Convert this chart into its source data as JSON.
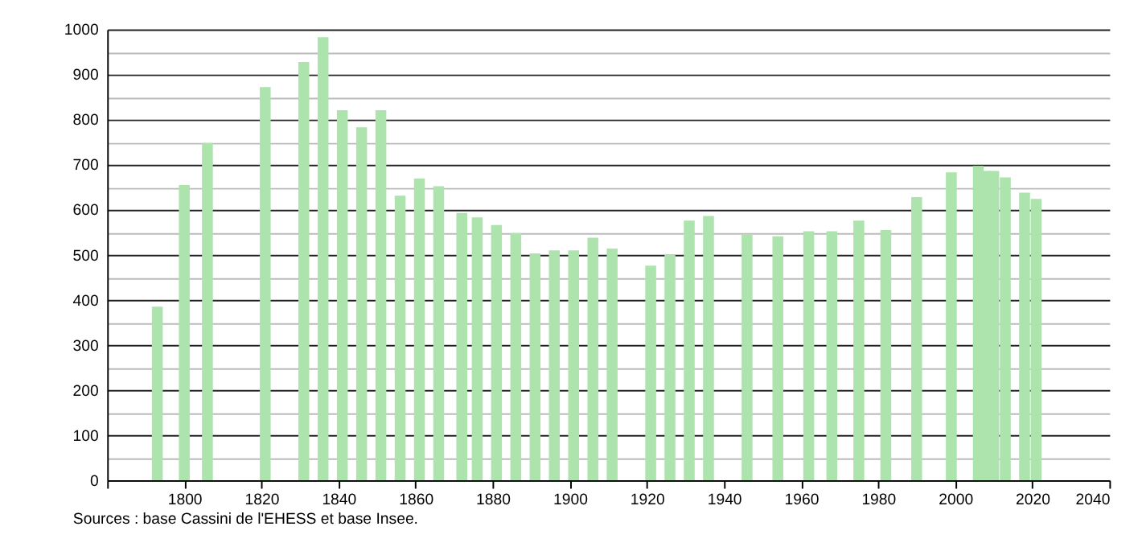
{
  "chart_data": {
    "type": "bar",
    "x": [
      1793,
      1800,
      1806,
      1821,
      1831,
      1836,
      1841,
      1846,
      1851,
      1856,
      1861,
      1866,
      1872,
      1876,
      1881,
      1886,
      1891,
      1896,
      1901,
      1906,
      1911,
      1921,
      1926,
      1931,
      1936,
      1946,
      1954,
      1962,
      1968,
      1975,
      1982,
      1990,
      1999,
      2006,
      2008,
      2010,
      2013,
      2018,
      2021
    ],
    "values": [
      385,
      655,
      748,
      872,
      928,
      983,
      821,
      783,
      821,
      631,
      669,
      652,
      593,
      583,
      566,
      548,
      503,
      510,
      510,
      538,
      514,
      476,
      500,
      576,
      586,
      545,
      541,
      552,
      552,
      576,
      555,
      628,
      683,
      697,
      686,
      686,
      672,
      638,
      624
    ],
    "color": "#ade3ad",
    "xlim": [
      1780,
      2040
    ],
    "xticks": [
      {
        "value": 1780,
        "label": null
      },
      1800,
      1820,
      1840,
      1860,
      1880,
      1900,
      1920,
      1940,
      1960,
      1980,
      2000,
      2020,
      2040
    ],
    "ylim": [
      0,
      1000
    ],
    "yticks": [
      0,
      {
        "value": 50,
        "label": null
      },
      100,
      {
        "value": 150,
        "label": null
      },
      200,
      {
        "value": 250,
        "label": null
      },
      300,
      {
        "value": 350,
        "label": null
      },
      400,
      {
        "value": 450,
        "label": null
      },
      500,
      {
        "value": 550,
        "label": null
      },
      600,
      {
        "value": 650,
        "label": null
      },
      700,
      {
        "value": 750,
        "label": null
      },
      800,
      {
        "value": 850,
        "label": null
      },
      900,
      {
        "value": 950,
        "label": null
      },
      1000
    ],
    "grid": "y",
    "annotations": [
      "Sources : base Cassini de l'EHESS et base Insee."
    ]
  }
}
